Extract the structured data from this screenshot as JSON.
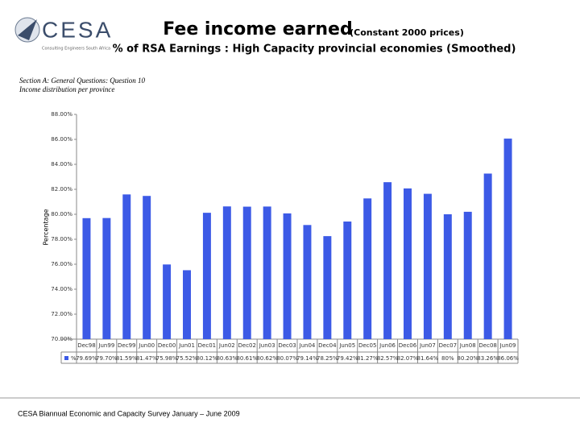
{
  "header": {
    "logo": "CESA",
    "tagline": "Consulting Engineers South Africa"
  },
  "chart_data": {
    "type": "bar",
    "title": "Fee income earned",
    "title_note": "(Constant 2000 prices)",
    "subtitle": "% of RSA Earnings : High Capacity provincial economies (Smoothed)",
    "annotations": [
      "Section A: General Questions: Question 10",
      "Income distribution per province"
    ],
    "ylabel": "Percentage",
    "categories": [
      "Dec98",
      "Jun99",
      "Dec99",
      "Jun00",
      "Dec00",
      "Jun01",
      "Dec01",
      "Jun02",
      "Dec02",
      "Jun03",
      "Dec03",
      "Jun04",
      "Dec04",
      "Jun05",
      "Dec05",
      "Jun06",
      "Dec06",
      "Jun07",
      "Dec07",
      "Jun08",
      "Dec08",
      "Jun09"
    ],
    "series": [
      {
        "name": "%",
        "color": "#3c5ae6",
        "values": [
          79.69,
          79.7,
          81.59,
          81.47,
          75.98,
          75.52,
          80.12,
          80.63,
          80.61,
          80.62,
          80.07,
          79.14,
          78.25,
          79.42,
          81.27,
          82.57,
          82.07,
          81.64,
          80,
          80.2,
          83.26,
          86.06
        ],
        "value_labels": [
          "79.69%",
          "79.70%",
          "81.59%",
          "81.47%",
          "75.98%",
          "75.52%",
          "80.12%",
          "80.63%",
          "80.61%",
          "80.62%",
          "80.07%",
          "79.14%",
          "78.25%",
          "79.42%",
          "81.27%",
          "82.57%",
          "82.07%",
          "81.64%",
          "80%",
          "80.20%",
          "83.26%",
          "86.06%"
        ]
      }
    ],
    "ylim": [
      70,
      88
    ],
    "yticks": [
      {
        "value": 70,
        "label": "70.00%"
      },
      {
        "value": 72,
        "label": "72.00%"
      },
      {
        "value": 74,
        "label": "74.00%"
      },
      {
        "value": 76,
        "label": "76.00%"
      },
      {
        "value": 78,
        "label": "78.00%"
      },
      {
        "value": 80,
        "label": "80.00%"
      },
      {
        "value": 82,
        "label": "82.00%"
      },
      {
        "value": 84,
        "label": "84.00%"
      },
      {
        "value": 86,
        "label": "86.00%"
      },
      {
        "value": 88,
        "label": "88.00%"
      }
    ]
  },
  "footer": "CESA Biannual Economic and Capacity Survey January – June 2009"
}
